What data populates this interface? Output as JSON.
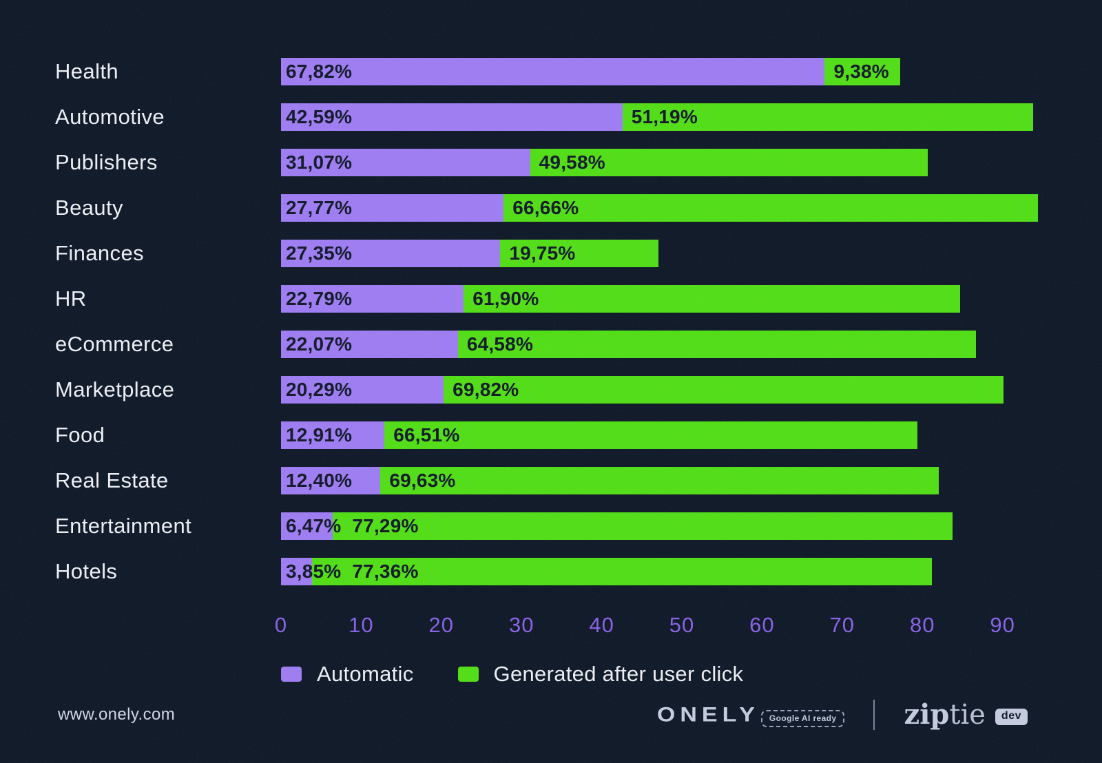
{
  "chart_data": {
    "type": "bar",
    "orientation": "horizontal",
    "stacked": true,
    "title": "",
    "xlabel": "",
    "ylabel": "",
    "axis_max": 94.5,
    "x_ticks": [
      "0",
      "10",
      "20",
      "30",
      "40",
      "50",
      "60",
      "70",
      "80",
      "90"
    ],
    "grid": false,
    "legend_position": "bottom",
    "categories": [
      "Health",
      "Automotive",
      "Publishers",
      "Beauty",
      "Finances",
      "HR",
      "eCommerce",
      "Marketplace",
      "Food",
      "Real Estate",
      "Entertainment",
      "Hotels"
    ],
    "series": [
      {
        "name": "Automatic",
        "color": "#9d7bf4",
        "values": [
          67.82,
          42.59,
          31.07,
          27.77,
          27.35,
          22.79,
          22.07,
          20.29,
          12.91,
          12.4,
          6.47,
          3.85
        ],
        "labels": [
          "67,82%",
          "42,59%",
          "31,07%",
          "27,77%",
          "27,35%",
          "22,79%",
          "22,07%",
          "20,29%",
          "12,91%",
          "12,40%",
          "6,47%",
          "3,85%"
        ]
      },
      {
        "name": "Generated after user click",
        "color": "#4fdf12",
        "values": [
          9.38,
          51.19,
          49.58,
          66.66,
          19.75,
          61.9,
          64.58,
          69.82,
          66.51,
          69.63,
          77.29,
          77.36
        ],
        "labels": [
          "9,38%",
          "51,19%",
          "49,58%",
          "66,66%",
          "19,75%",
          "61,90%",
          "64,58%",
          "69,82%",
          "66,51%",
          "69,63%",
          "77,29%",
          "77,36%"
        ]
      }
    ]
  },
  "colors": {
    "background": "#0a1424",
    "automatic": "#9d7bf4",
    "generated": "#4fdf12",
    "axis_text": "#8560e6",
    "value_text": "#0d1526",
    "label_text": "#eff1f7"
  },
  "footer": {
    "website": "www.onely.com",
    "onely_logo": "ONELY",
    "google_badge": "Google AI ready",
    "ziptie_zip": "zip",
    "ziptie_tie": "tie",
    "dev_badge": "dev"
  }
}
